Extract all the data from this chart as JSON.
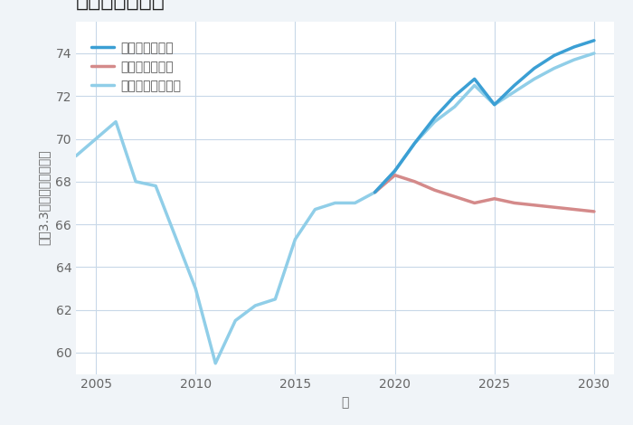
{
  "xlabel": "年",
  "ylabel": "坪（3.3㎡）単価（万円）",
  "ylim": [
    59,
    75.5
  ],
  "xlim": [
    2004,
    2031
  ],
  "yticks": [
    60,
    62,
    64,
    66,
    68,
    70,
    72,
    74
  ],
  "xticks": [
    2005,
    2010,
    2015,
    2020,
    2025,
    2030
  ],
  "background_color": "#f0f4f8",
  "plot_bg_color": "#ffffff",
  "grid_color": "#c8d8e8",
  "normal_scenario": {
    "x": [
      2004,
      2006,
      2007,
      2008,
      2010,
      2011,
      2012,
      2013,
      2014,
      2015,
      2016,
      2017,
      2018,
      2019,
      2020,
      2021,
      2022,
      2023,
      2024,
      2025,
      2026,
      2027,
      2028,
      2029,
      2030
    ],
    "y": [
      69.2,
      70.8,
      68.0,
      67.8,
      63.0,
      59.5,
      61.5,
      62.2,
      62.5,
      65.3,
      66.7,
      67.0,
      67.0,
      67.5,
      68.5,
      69.8,
      70.8,
      71.5,
      72.5,
      71.6,
      72.2,
      72.8,
      73.3,
      73.7,
      74.0
    ],
    "color": "#90CEE8",
    "linewidth": 2.5,
    "label": "ノーマルシナリオ"
  },
  "good_scenario": {
    "x": [
      2019,
      2020,
      2021,
      2022,
      2023,
      2024,
      2025,
      2026,
      2027,
      2028,
      2029,
      2030
    ],
    "y": [
      67.5,
      68.5,
      69.8,
      71.0,
      72.0,
      72.8,
      71.6,
      72.5,
      73.3,
      73.9,
      74.3,
      74.6
    ],
    "color": "#3b9fd4",
    "linewidth": 2.5,
    "label": "グッドシナリオ"
  },
  "bad_scenario": {
    "x": [
      2019,
      2020,
      2021,
      2022,
      2023,
      2024,
      2025,
      2026,
      2027,
      2028,
      2029,
      2030
    ],
    "y": [
      67.5,
      68.3,
      68.0,
      67.6,
      67.3,
      67.0,
      67.2,
      67.0,
      66.9,
      66.8,
      66.7,
      66.6
    ],
    "color": "#d48a8a",
    "linewidth": 2.5,
    "label": "バッドシナリオ"
  },
  "title_fontsize": 17,
  "axis_fontsize": 10,
  "tick_fontsize": 10,
  "legend_fontsize": 10
}
